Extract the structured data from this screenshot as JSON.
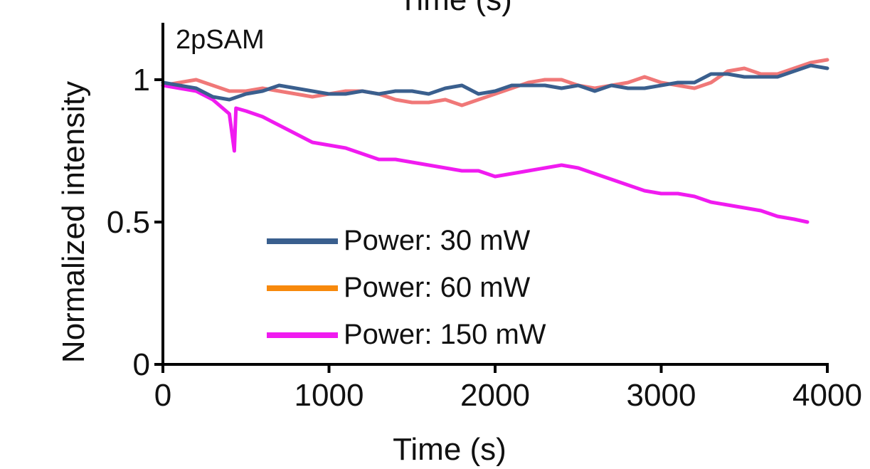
{
  "chart_data": {
    "type": "line",
    "panel_label": "2pSAM",
    "top_cut_label": "Time (s)",
    "xlabel": "Time (s)",
    "ylabel": "Normalized intensity",
    "xlim": [
      0,
      4000
    ],
    "ylim": [
      0,
      1.2
    ],
    "x_ticks": [
      0,
      1000,
      2000,
      3000,
      4000
    ],
    "x_tick_labels": [
      "0",
      "1000",
      "2000",
      "3000",
      "4000"
    ],
    "y_ticks": [
      0,
      0.5,
      1
    ],
    "y_tick_labels": [
      "0",
      "0.5",
      "1"
    ],
    "grid": false,
    "legend_position": "bottom-center",
    "series": [
      {
        "name": "Power: 30 mW",
        "color": "#3a5f8e",
        "legend_color": "#3a5f8e",
        "x": [
          0,
          100,
          200,
          300,
          400,
          500,
          600,
          700,
          800,
          900,
          1000,
          1100,
          1200,
          1300,
          1400,
          1500,
          1600,
          1700,
          1800,
          1900,
          2000,
          2100,
          2200,
          2300,
          2400,
          2500,
          2600,
          2700,
          2800,
          2900,
          3000,
          3100,
          3200,
          3300,
          3400,
          3500,
          3600,
          3700,
          3800,
          3900,
          4000
        ],
        "y": [
          0.99,
          0.98,
          0.97,
          0.94,
          0.93,
          0.95,
          0.96,
          0.98,
          0.97,
          0.96,
          0.95,
          0.95,
          0.96,
          0.95,
          0.96,
          0.96,
          0.95,
          0.97,
          0.98,
          0.95,
          0.96,
          0.98,
          0.98,
          0.98,
          0.97,
          0.98,
          0.96,
          0.98,
          0.97,
          0.97,
          0.98,
          0.99,
          0.99,
          1.02,
          1.02,
          1.01,
          1.01,
          1.01,
          1.03,
          1.05,
          1.04
        ]
      },
      {
        "name": "Power: 60 mW",
        "color": "#f07878",
        "legend_color": "#f7890c",
        "x": [
          0,
          100,
          200,
          300,
          400,
          500,
          600,
          700,
          800,
          900,
          1000,
          1100,
          1200,
          1300,
          1400,
          1500,
          1600,
          1700,
          1800,
          1900,
          2000,
          2100,
          2200,
          2300,
          2400,
          2500,
          2600,
          2700,
          2800,
          2900,
          3000,
          3100,
          3200,
          3300,
          3400,
          3500,
          3600,
          3700,
          3800,
          3900,
          4000
        ],
        "y": [
          0.98,
          0.99,
          1.0,
          0.98,
          0.96,
          0.96,
          0.97,
          0.96,
          0.95,
          0.94,
          0.95,
          0.96,
          0.96,
          0.95,
          0.93,
          0.92,
          0.92,
          0.93,
          0.91,
          0.93,
          0.95,
          0.97,
          0.99,
          1.0,
          1.0,
          0.98,
          0.97,
          0.98,
          0.99,
          1.01,
          0.99,
          0.98,
          0.97,
          0.99,
          1.03,
          1.04,
          1.02,
          1.02,
          1.04,
          1.06,
          1.07
        ]
      },
      {
        "name": "Power: 150 mW",
        "color": "#f01bf0",
        "legend_color": "#f01bf0",
        "x": [
          0,
          100,
          200,
          300,
          400,
          430,
          440,
          500,
          600,
          700,
          800,
          900,
          1000,
          1100,
          1200,
          1300,
          1400,
          1500,
          1600,
          1700,
          1800,
          1900,
          2000,
          2100,
          2200,
          2300,
          2400,
          2500,
          2600,
          2700,
          2800,
          2900,
          3000,
          3100,
          3200,
          3300,
          3400,
          3500,
          3600,
          3700,
          3800,
          3880
        ],
        "y": [
          0.98,
          0.97,
          0.96,
          0.93,
          0.88,
          0.75,
          0.9,
          0.89,
          0.87,
          0.84,
          0.81,
          0.78,
          0.77,
          0.76,
          0.74,
          0.72,
          0.72,
          0.71,
          0.7,
          0.69,
          0.68,
          0.68,
          0.66,
          0.67,
          0.68,
          0.69,
          0.7,
          0.69,
          0.67,
          0.65,
          0.63,
          0.61,
          0.6,
          0.6,
          0.59,
          0.57,
          0.56,
          0.55,
          0.54,
          0.52,
          0.51,
          0.5
        ]
      }
    ]
  }
}
